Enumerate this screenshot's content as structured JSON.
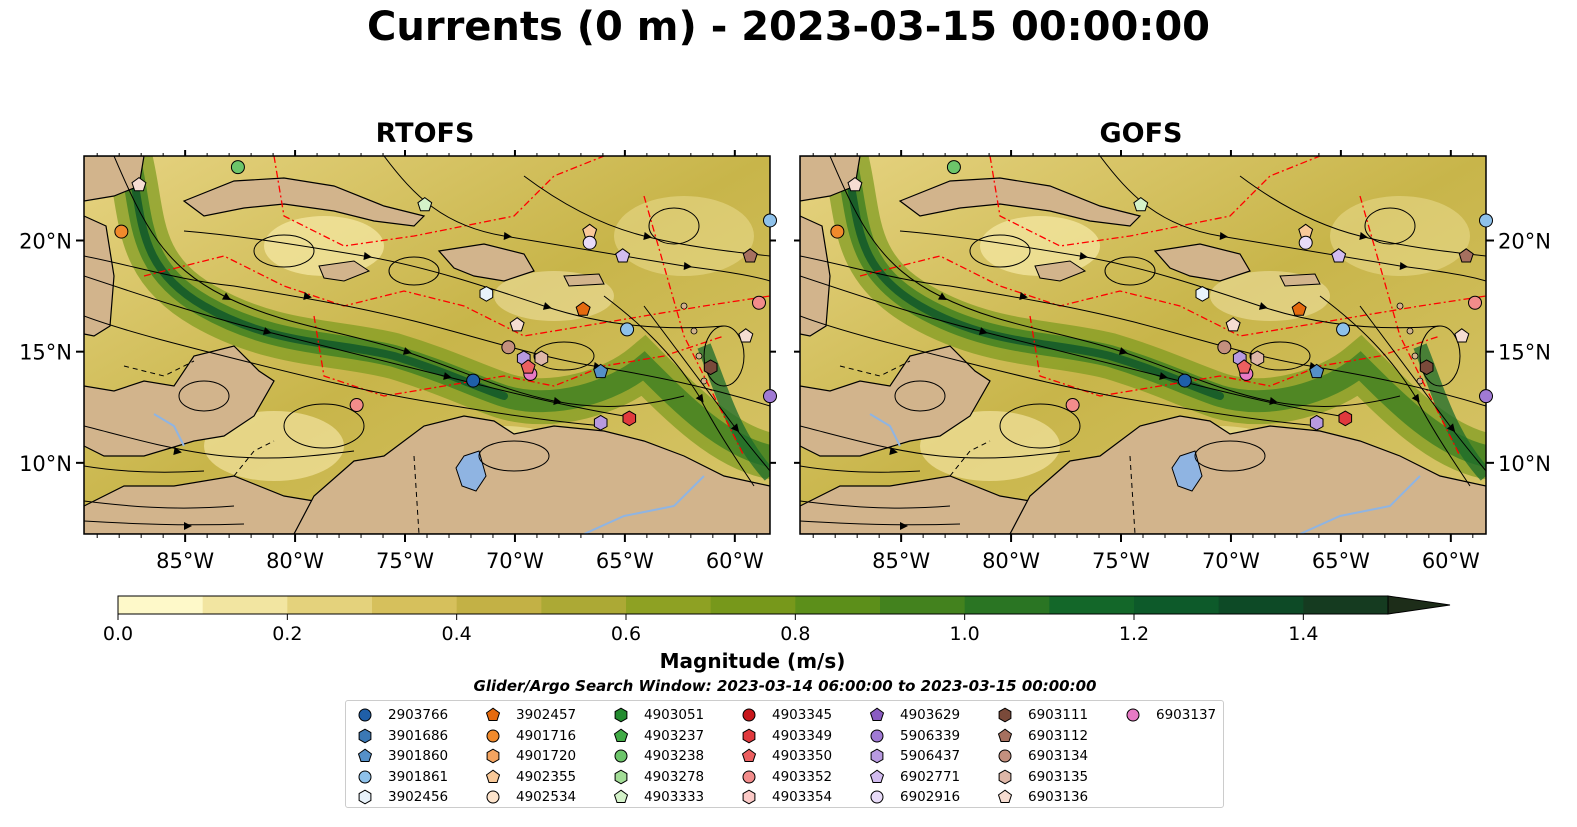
{
  "figure": {
    "title": "Currents (0 m) - 2023-03-15 00:00:00",
    "panels": [
      {
        "title": "RTOFS"
      },
      {
        "title": "GOFS"
      }
    ],
    "lon_ticks": [
      "85°W",
      "80°W",
      "75°W",
      "70°W",
      "65°W",
      "60°W"
    ],
    "lat_ticks": [
      "20°N",
      "15°N",
      "10°N"
    ],
    "lon_range": [
      -89.6,
      -58.4
    ],
    "lat_range": [
      6.8,
      23.8
    ]
  },
  "colorbar": {
    "label": "Magnitude (m/s)",
    "ticks": [
      "0.0",
      "0.2",
      "0.4",
      "0.6",
      "0.8",
      "1.0",
      "1.2",
      "1.4"
    ],
    "range": [
      0,
      1.5
    ],
    "extend": "max",
    "colors": [
      "#fef9c9",
      "#f2e5a1",
      "#e4d27c",
      "#d6c05c",
      "#c3b145",
      "#aca935",
      "#8ea123",
      "#77981b",
      "#5c8f1a",
      "#43821e",
      "#2a7523",
      "#136729",
      "#0d5a2a",
      "#0d4a26",
      "#153b20",
      "#1d2d19"
    ]
  },
  "search_window": "Glider/Argo Search Window: 2023-03-14 06:00:00 to 2023-03-15 00:00:00",
  "legend": {
    "entries": [
      {
        "label": "2903766",
        "color": "#1f5fa8",
        "marker": "circle"
      },
      {
        "label": "3901686",
        "color": "#3b78b5",
        "marker": "hexagon"
      },
      {
        "label": "3901860",
        "color": "#5590c8",
        "marker": "pentagon"
      },
      {
        "label": "3901861",
        "color": "#8ec1ea",
        "marker": "circle"
      },
      {
        "label": "3902456",
        "color": "#e9f3fb",
        "marker": "hexagon"
      },
      {
        "label": "3902457",
        "color": "#e56a0e",
        "marker": "pentagon"
      },
      {
        "label": "4901716",
        "color": "#f08a2c",
        "marker": "circle"
      },
      {
        "label": "4901720",
        "color": "#f4a460",
        "marker": "hexagon"
      },
      {
        "label": "4902355",
        "color": "#f9c999",
        "marker": "pentagon"
      },
      {
        "label": "4902534",
        "color": "#fde4cc",
        "marker": "circle"
      },
      {
        "label": "4903051",
        "color": "#238b2f",
        "marker": "hexagon"
      },
      {
        "label": "4903237",
        "color": "#41ab46",
        "marker": "pentagon"
      },
      {
        "label": "4903238",
        "color": "#6cc56a",
        "marker": "circle"
      },
      {
        "label": "4903278",
        "color": "#a3dd97",
        "marker": "hexagon"
      },
      {
        "label": "4903333",
        "color": "#d4f2c9",
        "marker": "pentagon"
      },
      {
        "label": "4903345",
        "color": "#c8171c",
        "marker": "circle"
      },
      {
        "label": "4903349",
        "color": "#e0393d",
        "marker": "hexagon"
      },
      {
        "label": "4903350",
        "color": "#ec5f60",
        "marker": "pentagon"
      },
      {
        "label": "4903352",
        "color": "#f28c8b",
        "marker": "circle"
      },
      {
        "label": "4903354",
        "color": "#fbc9c6",
        "marker": "hexagon"
      },
      {
        "label": "4903629",
        "color": "#8a5cc2",
        "marker": "pentagon"
      },
      {
        "label": "5906339",
        "color": "#a07ad4",
        "marker": "circle"
      },
      {
        "label": "5906437",
        "color": "#b89ae0",
        "marker": "hexagon"
      },
      {
        "label": "6902771",
        "color": "#d2bcef",
        "marker": "pentagon"
      },
      {
        "label": "6902916",
        "color": "#e8dbf8",
        "marker": "circle"
      },
      {
        "label": "6903111",
        "color": "#7a4a3a",
        "marker": "hexagon"
      },
      {
        "label": "6903112",
        "color": "#a6705f",
        "marker": "pentagon"
      },
      {
        "label": "6903134",
        "color": "#c4907e",
        "marker": "circle"
      },
      {
        "label": "6903135",
        "color": "#deb7a8",
        "marker": "hexagon"
      },
      {
        "label": "6903136",
        "color": "#f6ddd2",
        "marker": "pentagon"
      },
      {
        "label": "6903137",
        "color": "#e77ac4",
        "marker": "circle"
      }
    ]
  },
  "markers": [
    {
      "id": "4903238",
      "lon": -82.6,
      "lat": 23.3
    },
    {
      "id": "6903136",
      "lon": -87.1,
      "lat": 22.5
    },
    {
      "id": "4901716",
      "lon": -87.9,
      "lat": 20.4
    },
    {
      "id": "4903333",
      "lon": -74.1,
      "lat": 21.6
    },
    {
      "id": "4902355",
      "lon": -66.6,
      "lat": 20.4
    },
    {
      "id": "6902916",
      "lon": -66.6,
      "lat": 19.9
    },
    {
      "id": "6902771",
      "lon": -65.1,
      "lat": 19.3
    },
    {
      "id": "6903112",
      "lon": -59.3,
      "lat": 19.3
    },
    {
      "id": "3901861",
      "lon": -58.4,
      "lat": 20.9
    },
    {
      "id": "3902456",
      "lon": -71.3,
      "lat": 17.6
    },
    {
      "id": "6903136",
      "lon": -69.9,
      "lat": 16.2
    },
    {
      "id": "3902457",
      "lon": -66.9,
      "lat": 16.9
    },
    {
      "id": "4903352",
      "lon": -58.9,
      "lat": 17.2
    },
    {
      "id": "3901861",
      "lon": -64.9,
      "lat": 16.0
    },
    {
      "id": "6903136",
      "lon": -59.5,
      "lat": 15.7
    },
    {
      "id": "6903134",
      "lon": -70.3,
      "lat": 15.2
    },
    {
      "id": "6903135",
      "lon": -68.8,
      "lat": 14.7
    },
    {
      "id": "5906437",
      "lon": -69.6,
      "lat": 14.7
    },
    {
      "id": "6903137",
      "lon": -69.3,
      "lat": 14.0
    },
    {
      "id": "4903350",
      "lon": -69.4,
      "lat": 14.3
    },
    {
      "id": "3901860",
      "lon": -66.1,
      "lat": 14.1
    },
    {
      "id": "6903111",
      "lon": -61.1,
      "lat": 14.3
    },
    {
      "id": "2903766",
      "lon": -71.9,
      "lat": 13.7
    },
    {
      "id": "4903352",
      "lon": -77.2,
      "lat": 12.6
    },
    {
      "id": "4903349",
      "lon": -64.8,
      "lat": 12.0
    },
    {
      "id": "5906437",
      "lon": -66.1,
      "lat": 11.8
    },
    {
      "id": "5906339",
      "lon": -58.4,
      "lat": 13.0
    }
  ]
}
